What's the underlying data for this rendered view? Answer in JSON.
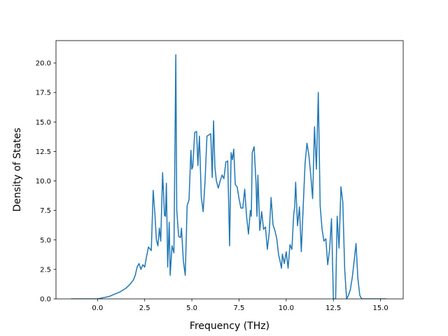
{
  "chart_data": {
    "type": "line",
    "xlabel": "Frequency (THz)",
    "ylabel": "Density of States",
    "xlim": [
      -2.2,
      16.2
    ],
    "ylim": [
      0,
      21.9
    ],
    "xticks": [
      0.0,
      2.5,
      5.0,
      7.5,
      10.0,
      12.5,
      15.0
    ],
    "xtick_labels": [
      "0.0",
      "2.5",
      "5.0",
      "7.5",
      "10.0",
      "12.5",
      "15.0"
    ],
    "yticks": [
      0.0,
      2.5,
      5.0,
      7.5,
      10.0,
      12.5,
      15.0,
      17.5,
      20.0
    ],
    "ytick_labels": [
      "0.0",
      "2.5",
      "5.0",
      "7.5",
      "10.0",
      "12.5",
      "15.0",
      "17.5",
      "20.0"
    ],
    "grid": false,
    "line_color": "#1f77b4",
    "series": [
      {
        "x": [
          -1.4,
          -0.5,
          0.0,
          0.3,
          0.6,
          0.9,
          1.2,
          1.5,
          1.7,
          1.9,
          2.0,
          2.1,
          2.2,
          2.3,
          2.4,
          2.5,
          2.6,
          2.7,
          2.75,
          2.85,
          2.95,
          3.05,
          3.12,
          3.2,
          3.28,
          3.35,
          3.45,
          3.55,
          3.6,
          3.65,
          3.72,
          3.8,
          3.85,
          3.95,
          4.05,
          4.15,
          4.2,
          4.3,
          4.4,
          4.45,
          4.55,
          4.65,
          4.75,
          4.85,
          4.95,
          5.0,
          5.05,
          5.15,
          5.25,
          5.32,
          5.4,
          5.5,
          5.6,
          5.7,
          5.8,
          5.9,
          6.0,
          6.08,
          6.15,
          6.22,
          6.3,
          6.4,
          6.5,
          6.6,
          6.7,
          6.8,
          6.9,
          7.0,
          7.08,
          7.15,
          7.22,
          7.3,
          7.4,
          7.5,
          7.6,
          7.7,
          7.8,
          7.9,
          8.0,
          8.1,
          8.15,
          8.2,
          8.3,
          8.4,
          8.45,
          8.5,
          8.6,
          8.7,
          8.8,
          8.9,
          9.0,
          9.1,
          9.2,
          9.3,
          9.4,
          9.5,
          9.6,
          9.65,
          9.7,
          9.75,
          9.8,
          9.85,
          9.9,
          10.0,
          10.1,
          10.2,
          10.3,
          10.4,
          10.45,
          10.5,
          10.6,
          10.7,
          10.8,
          10.9,
          11.0,
          11.1,
          11.2,
          11.3,
          11.4,
          11.5,
          11.6,
          11.7,
          11.8,
          11.9,
          12.0,
          12.1,
          12.2,
          12.3,
          12.4,
          12.5,
          12.55,
          12.62,
          12.7,
          12.8,
          12.9,
          13.0,
          13.1,
          13.2,
          13.3,
          13.4,
          13.5,
          13.6,
          13.7,
          13.8,
          13.9,
          14.0,
          14.1,
          14.5,
          15.3
        ],
        "y": [
          0,
          0,
          0,
          0.1,
          0.2,
          0.4,
          0.6,
          0.9,
          1.2,
          1.6,
          2.0,
          2.7,
          3.0,
          2.5,
          2.9,
          2.7,
          3.6,
          4.4,
          4.3,
          4.1,
          9.2,
          7.0,
          5.0,
          4.5,
          6.0,
          4.9,
          10.7,
          7.1,
          7.0,
          9.8,
          2.7,
          6.5,
          2.0,
          4.5,
          3.9,
          20.7,
          7.5,
          5.3,
          5.2,
          6.0,
          3.2,
          2.0,
          7.9,
          8.4,
          12.6,
          11.0,
          11.2,
          14.1,
          14.2,
          11.3,
          13.8,
          8.6,
          7.4,
          10.0,
          13.8,
          13.9,
          14.0,
          10.3,
          15.1,
          11.2,
          10.0,
          9.4,
          10.0,
          10.5,
          10.2,
          11.6,
          11.7,
          4.5,
          12.4,
          11.8,
          12.7,
          9.7,
          9.5,
          8.5,
          7.7,
          7.7,
          9.3,
          7.0,
          5.5,
          7.5,
          7.0,
          12.4,
          12.9,
          9.8,
          7.0,
          10.5,
          5.8,
          7.4,
          5.9,
          6.1,
          4.2,
          5.6,
          8.6,
          6.3,
          5.8,
          5.1,
          3.7,
          3.4,
          3.0,
          2.6,
          3.8,
          3.4,
          3.0,
          4.0,
          2.6,
          4.6,
          4.2,
          7.2,
          7.8,
          9.9,
          6.2,
          7.8,
          4.0,
          7.8,
          11.5,
          13.2,
          12.2,
          10.5,
          8.5,
          14.6,
          11.0,
          17.5,
          7.9,
          5.9,
          4.9,
          5.1,
          2.9,
          4.2,
          6.8,
          0.0,
          0.0,
          0.0,
          7.0,
          4.3,
          9.5,
          8.2,
          2.5,
          0.0,
          0.3,
          0.8,
          1.8,
          3.2,
          4.7,
          1.7,
          0.3,
          0,
          0,
          0,
          0
        ]
      }
    ]
  }
}
